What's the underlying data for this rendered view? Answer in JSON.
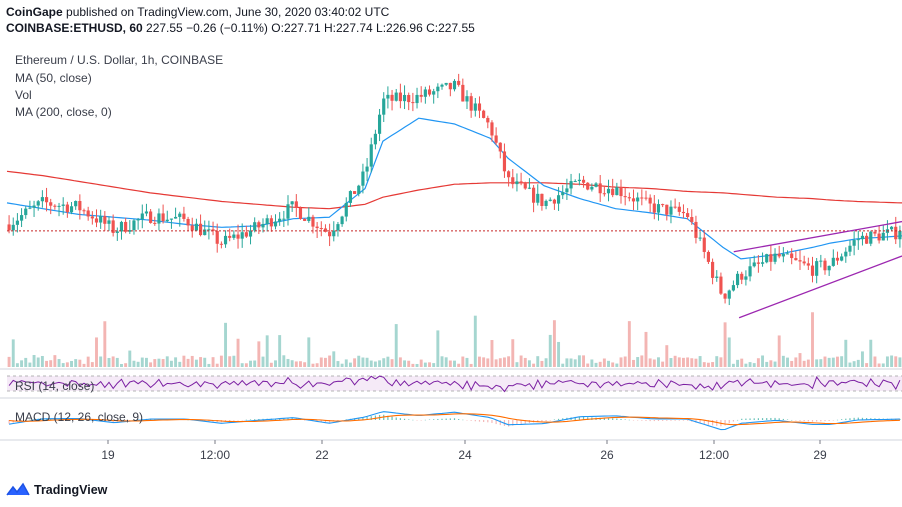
{
  "header": {
    "publisher": "CoinGape",
    "published_text": "published on TradingView.com, June 30, 2020 03:40:02 UTC",
    "symbol": "COINBASE:ETHUSD, 60",
    "last": "227.55",
    "change": "−0.26 (−0.11%)",
    "o_label": "O:",
    "o_value": "227.71",
    "h_label": "H:",
    "h_value": "227.74",
    "l_label": "L:",
    "l_value": "226.96",
    "c_label": "C:",
    "c_value": "227.55"
  },
  "legend": {
    "title": "Ethereum / U.S. Dollar, 1h, COINBASE",
    "ma50": "MA (50, close)",
    "vol": "Vol",
    "ma200": "MA (200, close, 0)",
    "rsi": "RSI (14, close)",
    "macd": "MACD (12, 26, close, 9)"
  },
  "footer": {
    "brand": "TradingView"
  },
  "colors": {
    "up": "#26a69a",
    "down": "#ef5350",
    "ma50": "#2196f3",
    "ma200": "#e53935",
    "rsi": "#7b1fa2",
    "macd": "#2196f3",
    "signal": "#ff6d00",
    "trendline": "#9c27b0",
    "price_line": "#c62828"
  },
  "chart_data": {
    "type": "candlestick",
    "title": "Ethereum / U.S. Dollar, 1h, COINBASE",
    "x_tick_labels": [
      "19",
      "12:00",
      "22",
      "24",
      "26",
      "12:00",
      "29"
    ],
    "last_price": 227.55,
    "ohlc_last": {
      "open": 227.71,
      "high": 227.74,
      "low": 226.96,
      "close": 227.55
    },
    "price_anchors_x_fraction": [
      0.0,
      0.04,
      0.08,
      0.12,
      0.16,
      0.2,
      0.24,
      0.28,
      0.32,
      0.36,
      0.4,
      0.42,
      0.46,
      0.5,
      0.54,
      0.56,
      0.6,
      0.64,
      0.68,
      0.72,
      0.76,
      0.8,
      0.82,
      0.86,
      0.9,
      0.92,
      0.95,
      1.0
    ],
    "price_anchors": [
      228.0,
      229.5,
      229.2,
      227.6,
      228.6,
      228.3,
      226.7,
      227.8,
      229.2,
      227.4,
      231.5,
      236.6,
      236.9,
      237.6,
      234.8,
      231.0,
      229.5,
      230.9,
      230.5,
      229.2,
      228.7,
      223.0,
      224.5,
      225.8,
      224.9,
      225.2,
      227.0,
      227.5
    ],
    "ma50_anchors": [
      229.5,
      229.1,
      228.7,
      228.5,
      228.3,
      228.0,
      227.8,
      227.9,
      228.4,
      228.5,
      230.5,
      233.8,
      235.4,
      235.0,
      234.0,
      232.6,
      230.7,
      229.8,
      229.1,
      228.8,
      228.4,
      226.4,
      225.6,
      225.9,
      226.4,
      226.7,
      227.0,
      227.2
    ],
    "ma200_anchors": [
      231.7,
      231.4,
      231.0,
      230.6,
      230.2,
      229.9,
      229.6,
      229.4,
      229.2,
      229.1,
      229.4,
      229.9,
      230.4,
      230.8,
      230.9,
      230.9,
      230.9,
      230.8,
      230.6,
      230.5,
      230.3,
      230.2,
      230.1,
      229.9,
      229.8,
      229.7,
      229.6,
      229.5
    ],
    "trendlines": [
      {
        "name": "upper",
        "from": {
          "x_fraction": 0.812,
          "price": 226.1
        },
        "to": {
          "x_fraction": 1.0,
          "price": 228.2
        }
      },
      {
        "name": "lower",
        "from": {
          "x_fraction": 0.818,
          "price": 221.5
        },
        "to": {
          "x_fraction": 1.0,
          "price": 225.8
        }
      }
    ],
    "rsi_range": [
      0,
      100
    ],
    "rsi_levels": [
      30,
      70
    ]
  }
}
